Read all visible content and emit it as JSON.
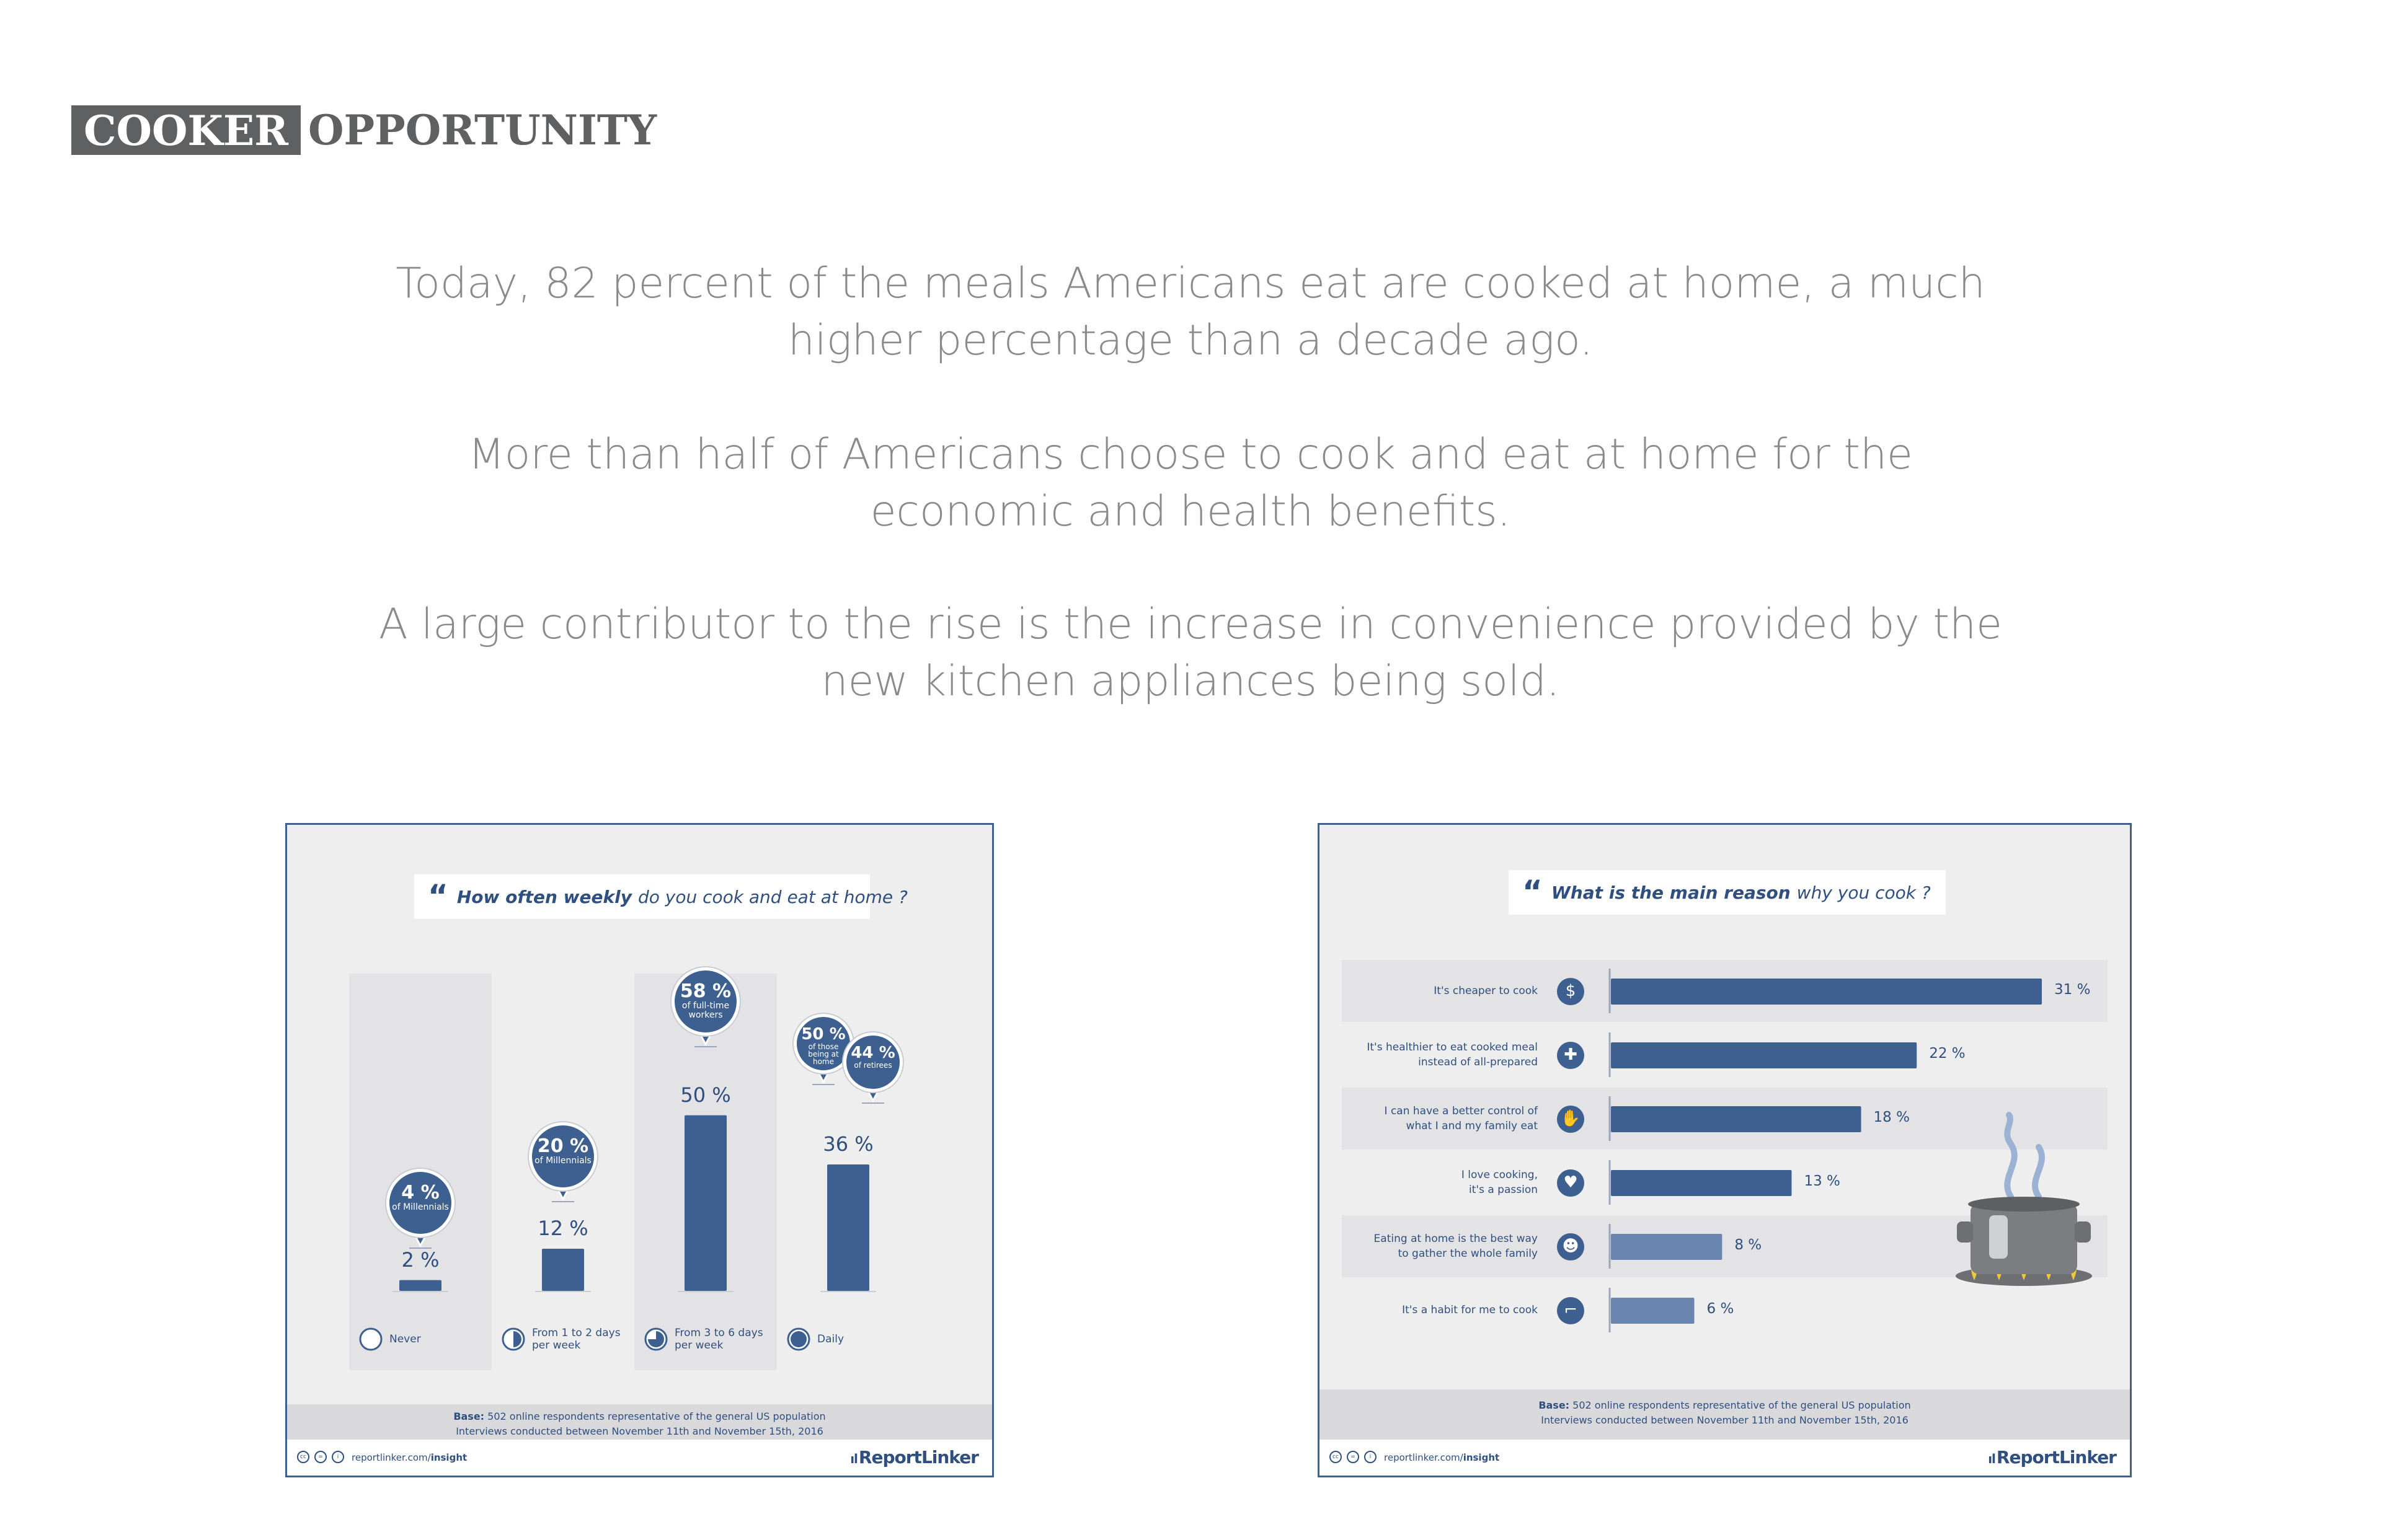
{
  "heading": {
    "word1": "COOKER",
    "word2": "OPPORTUNITY"
  },
  "intro": {
    "p1_line1": "Today, 82 percent of the meals Americans eat are cooked at home, a much",
    "p1_line2": "higher percentage than a decade ago.",
    "p2_line1": "More than half of Americans choose to cook and eat at home for the",
    "p2_line2": "economic and health benefits.",
    "p3_line1": "A large contributor to the rise is the increase in convenience provided by the",
    "p3_line2": "new kitchen appliances being sold."
  },
  "colors": {
    "accent": "#3d6090",
    "text_gray": "#8a8a8c",
    "heading_gray": "#5f6062",
    "panel_bg": "#eeeeef"
  },
  "footer": {
    "base_label": "Base:",
    "base_text": "502 online respondents representative of the general US population",
    "interviews": "Interviews conducted between November 11th and November 15th, 2016",
    "url_plain": "reportlinker.com/",
    "url_bold": "insight",
    "brand": "ReportLinker",
    "cc_icons": [
      "cc-icon",
      "nd-icon",
      "info-icon"
    ]
  },
  "chart_data": [
    {
      "type": "bar",
      "question_emphasis": "How often weekly",
      "question_rest": "do you cook and eat at home ?",
      "categories": [
        "Never",
        "From 1 to 2 days per week",
        "From 3 to 6 days per week",
        "Daily"
      ],
      "category_lines": [
        [
          "Never"
        ],
        [
          "From 1 to 2 days",
          "per week"
        ],
        [
          "From 3 to 6 days",
          "per week"
        ],
        [
          "Daily"
        ]
      ],
      "values": [
        2,
        12,
        50,
        36
      ],
      "value_labels": [
        "2 %",
        "12 %",
        "50 %",
        "36 %"
      ],
      "ylim": [
        0,
        60
      ],
      "legend_fill": [
        0,
        0.5,
        0.75,
        1
      ],
      "callouts": [
        {
          "category": "Never",
          "value": "4 %",
          "label": "of Millennials"
        },
        {
          "category": "From 1 to 2 days per week",
          "value": "20 %",
          "label": "of Millennials"
        },
        {
          "category": "From 3 to 6 days per week",
          "value": "58 %",
          "label": "of full-time workers"
        },
        {
          "category": "Daily",
          "value": "50 %",
          "label": "of those being at home"
        },
        {
          "category": "Daily",
          "value": "44 %",
          "label": "of retirees"
        }
      ]
    },
    {
      "type": "bar",
      "orientation": "horizontal",
      "question_emphasis": "What is the main reason",
      "question_rest": "why you cook ?",
      "categories": [
        "It's cheaper to cook",
        "It's healthier to eat cooked meal instead of all-prepared",
        "I can have a better control of what I and my family eat",
        "I love cooking, it's a passion",
        "Eating at home is the best way to gather the whole family",
        "It's a habit for me to cook"
      ],
      "category_lines": [
        [
          "It's cheaper to cook"
        ],
        [
          "It's healthier to eat cooked meal",
          "instead of all-prepared"
        ],
        [
          "I can have a better control of",
          "what I and my family eat"
        ],
        [
          "I love cooking,",
          "it's a passion"
        ],
        [
          "Eating at home is the best way",
          "to gather the whole family"
        ],
        [
          "It's a habit for me to cook"
        ]
      ],
      "icons": [
        "coins-icon",
        "health-cross-icon",
        "apple-hand-icon",
        "heart-pot-icon",
        "family-icon",
        "pan-icon"
      ],
      "values": [
        31,
        22,
        18,
        13,
        8,
        6
      ],
      "value_labels": [
        "31 %",
        "22 %",
        "18 %",
        "13 %",
        "8 %",
        "6 %"
      ],
      "xlim": [
        0,
        31
      ]
    }
  ]
}
